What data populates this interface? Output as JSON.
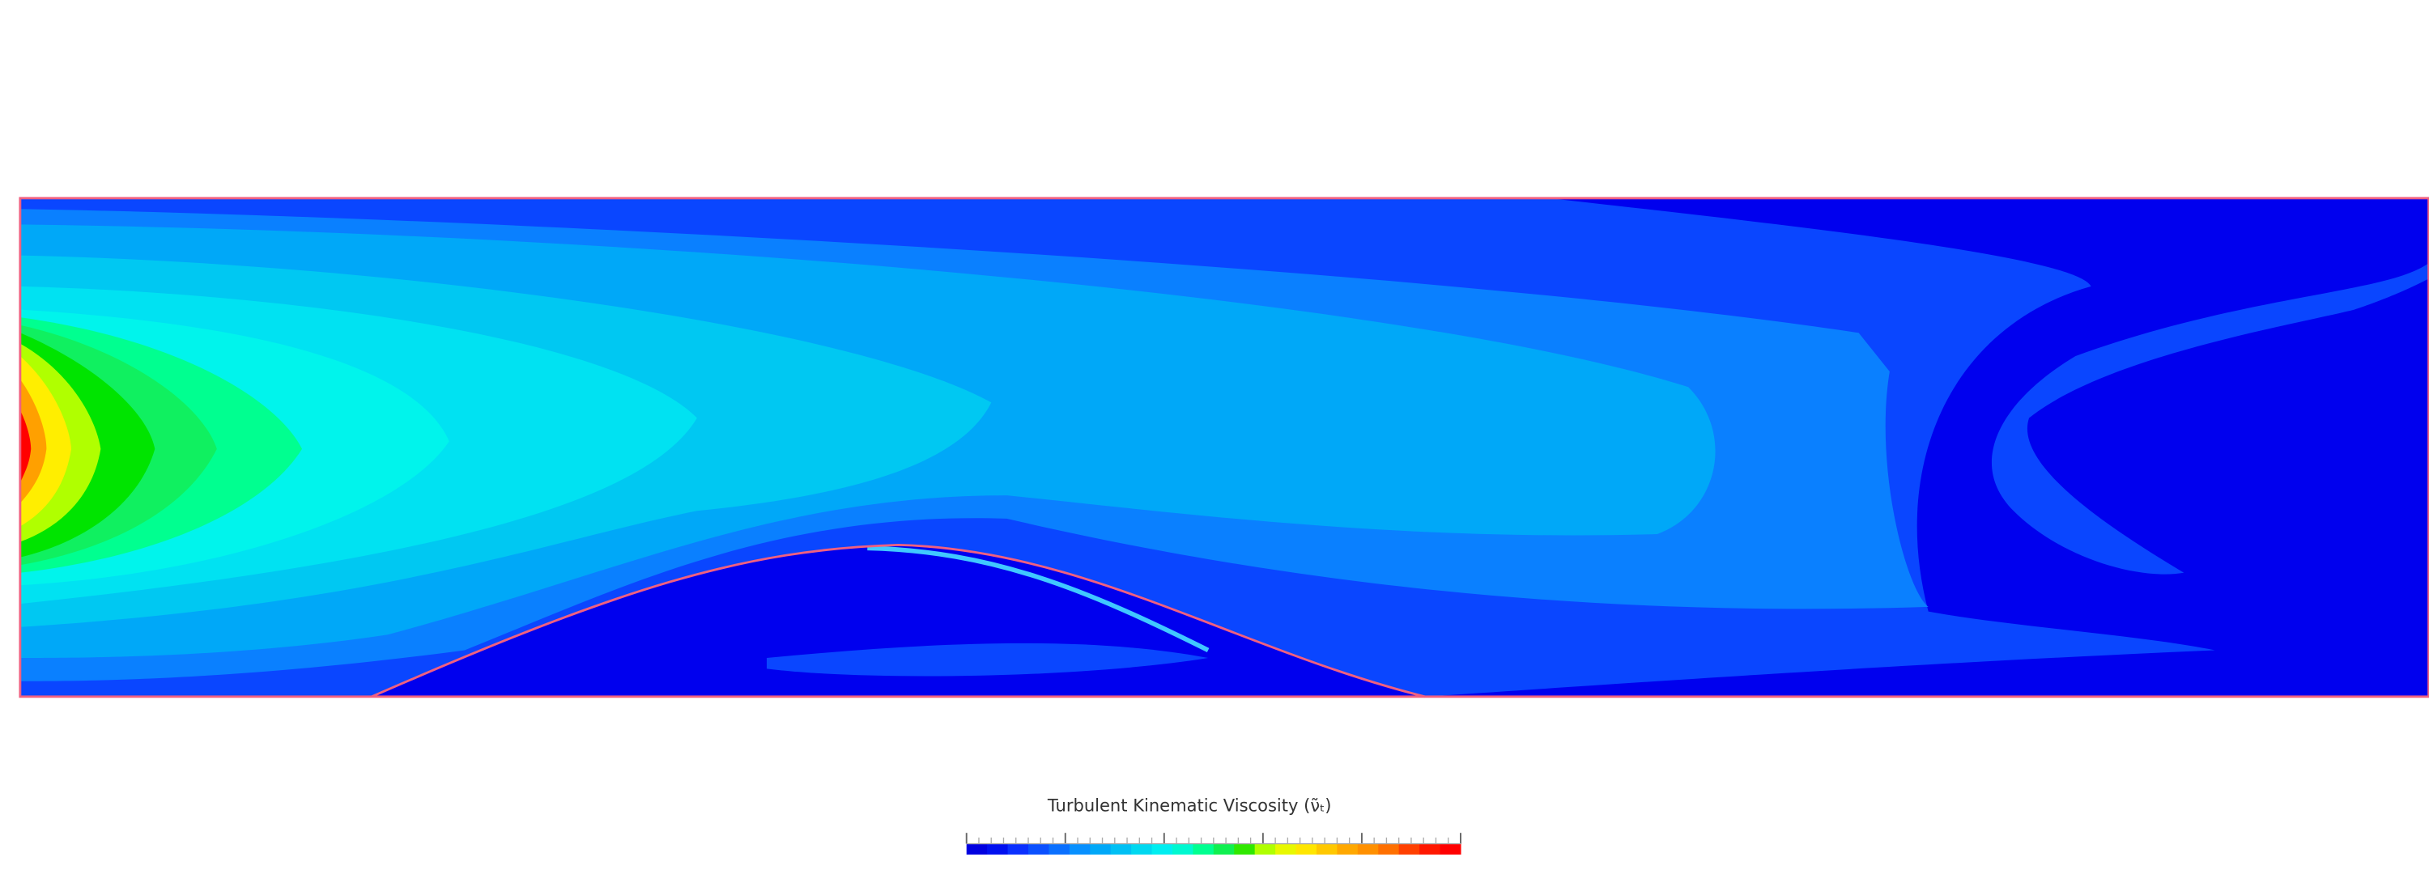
{
  "legend": {
    "title": "Turbulent Kinematic Viscosity (ν̃ₜ)"
  }
}
